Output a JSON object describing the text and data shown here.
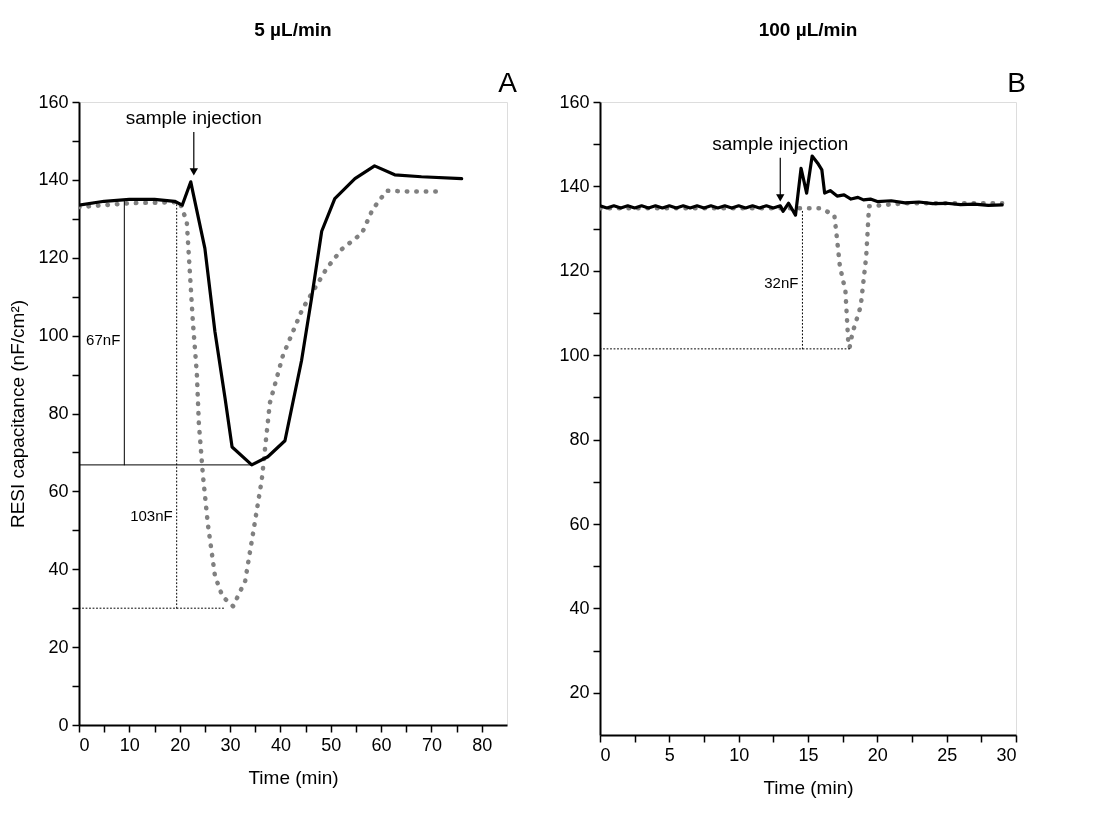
{
  "chart_data": [
    {
      "type": "line",
      "title": "5 µL/min",
      "xlabel": "Time (min)",
      "ylabel": "RESI capacitance (nF/cm²)",
      "xlim": [
        0,
        85
      ],
      "ylim": [
        0,
        160
      ],
      "xticks": [
        0,
        {
          "value": 5,
          "label": null
        },
        10,
        {
          "value": 15,
          "label": null
        },
        20,
        {
          "value": 25,
          "label": null
        },
        30,
        {
          "value": 35,
          "label": null
        },
        40,
        {
          "value": 45,
          "label": null
        },
        50,
        {
          "value": 55,
          "label": null
        },
        60,
        {
          "value": 65,
          "label": null
        },
        70,
        {
          "value": 75,
          "label": null
        },
        80
      ],
      "yticks": [
        0,
        {
          "value": 10,
          "label": null
        },
        20,
        {
          "value": 30,
          "label": null
        },
        40,
        {
          "value": 50,
          "label": null
        },
        60,
        {
          "value": 70,
          "label": null
        },
        80,
        {
          "value": 90,
          "label": null
        },
        100,
        {
          "value": 110,
          "label": null
        },
        120,
        {
          "value": 130,
          "label": null
        },
        140,
        {
          "value": 150,
          "label": null
        },
        160
      ],
      "grid": false,
      "marker": "none",
      "series": [
        {
          "color": "#808080",
          "line_style": "dotted",
          "x": [
            0,
            10,
            20,
            21.4,
            22,
            22.6,
            23.4,
            23.8,
            24.6,
            25.6,
            27,
            28.5,
            30.6,
            33,
            34.7,
            36.3,
            37.9,
            40.5,
            44.4,
            49.2,
            52.2,
            56.2,
            58.3,
            61.1,
            66,
            72
          ],
          "values": [
            133,
            134,
            134.3,
            129.3,
            116.6,
            103.8,
            90.3,
            77.5,
            64.3,
            51.5,
            38.3,
            33,
            30.5,
            37,
            50.3,
            63,
            82.7,
            94.9,
            106.9,
            117.3,
            122.2,
            126.3,
            132.4,
            137.2,
            137,
            137
          ]
        },
        {
          "color": "#000000",
          "line_style": "solid",
          "x": [
            0,
            5,
            10,
            15,
            19,
            20.5,
            22.2,
            22.6,
            25,
            27,
            29,
            30.4,
            34.3,
            37.5,
            40.9,
            44.2,
            46.2,
            48.2,
            50.8,
            54.8,
            58.7,
            62.7,
            68,
            76
          ],
          "values": [
            133.5,
            134.5,
            135,
            135,
            134.5,
            133.5,
            139.5,
            137,
            122.4,
            101,
            84,
            71.4,
            66.8,
            68.9,
            73,
            93.6,
            109.7,
            126.8,
            135.2,
            140.3,
            143.6,
            141.3,
            140.8,
            140.3
          ]
        },
        {
          "type": "line",
          "color": "#000000",
          "line_style": "solid",
          "x": [
            9,
            9
          ],
          "values": [
            66.8,
            134.5
          ]
        },
        {
          "type": "line",
          "color": "#000000",
          "line_style": "solid",
          "x": [
            0,
            34.3
          ],
          "values": [
            66.8,
            66.8
          ]
        },
        {
          "type": "line",
          "color": "#000000",
          "line_style": "dotted",
          "x": [
            19.4,
            19.4
          ],
          "values": [
            30,
            134
          ]
        },
        {
          "type": "line",
          "color": "#000000",
          "line_style": "dotted",
          "x": [
            0,
            29
          ],
          "values": [
            30,
            30
          ]
        }
      ],
      "annotations": [
        "A",
        {
          "text": "sample injection",
          "x": 22.8,
          "y": 140
        },
        {
          "text": "67nF",
          "x": 9,
          "y": 99
        },
        {
          "text": "103nF",
          "x": 19.4,
          "y": 53.6
        }
      ]
    },
    {
      "type": "line",
      "title": "100 µL/min",
      "xlabel": "Time (min)",
      "xlim": [
        0,
        30
      ],
      "ylim": [
        10,
        160
      ],
      "xticks": [
        0,
        {
          "value": 2.5,
          "label": null
        },
        5,
        {
          "value": 7.5,
          "label": null
        },
        10,
        {
          "value": 12.5,
          "label": null
        },
        15,
        {
          "value": 17.5,
          "label": null
        },
        20,
        {
          "value": 22.5,
          "label": null
        },
        25,
        {
          "value": 27.5,
          "label": null
        },
        30
      ],
      "yticks": [
        20,
        {
          "value": 30,
          "label": null
        },
        40,
        {
          "value": 50,
          "label": null
        },
        60,
        {
          "value": 70,
          "label": null
        },
        80,
        {
          "value": 90,
          "label": null
        },
        100,
        {
          "value": 110,
          "label": null
        },
        120,
        {
          "value": 130,
          "label": null
        },
        140,
        {
          "value": 150,
          "label": null
        },
        160
      ],
      "grid": false,
      "marker": "none",
      "series": [
        {
          "color": "#808080",
          "line_style": "dotted",
          "x": [
            0,
            5,
            10,
            15,
            15.9,
            16.9,
            17.1,
            17.3,
            17.7,
            17.8,
            17.9,
            18,
            18.2,
            18.8,
            19,
            19.2,
            19.3,
            19.4,
            22,
            29
          ],
          "values": [
            134.8,
            134.8,
            134.8,
            134.8,
            134.8,
            133.2,
            127.3,
            121.1,
            115.2,
            109.2,
            103.3,
            101.8,
            105.2,
            111.6,
            117.5,
            123.5,
            129.4,
            135.3,
            136,
            136
          ]
        },
        {
          "color": "#000000",
          "line_style": "solid",
          "x": [
            0,
            0.5,
            1,
            1.5,
            2,
            2.5,
            3,
            3.5,
            4,
            4.5,
            5,
            5.5,
            6,
            6.5,
            7,
            7.5,
            8,
            8.5,
            9,
            9.5,
            10,
            10.5,
            11,
            11.5,
            12,
            12.5,
            13,
            13.2,
            13.6,
            14.1,
            14.5,
            14.9,
            15.3,
            15.7,
            16,
            16.2,
            16.6,
            17.1,
            17.6,
            18.1,
            18.6,
            19,
            19.5,
            20,
            21,
            22,
            23,
            24,
            25,
            26,
            27,
            28,
            29
          ],
          "values": [
            135.4,
            134.9,
            135.4,
            134.9,
            135.4,
            134.9,
            135.4,
            134.9,
            135.4,
            134.9,
            135.4,
            134.9,
            135.4,
            134.9,
            135.4,
            134.9,
            135.4,
            134.9,
            135.4,
            134.9,
            135.4,
            134.9,
            135.4,
            134.9,
            135.4,
            134.9,
            135.4,
            134.1,
            136,
            133.2,
            144.3,
            138.4,
            147.2,
            145.5,
            143.9,
            138.4,
            139,
            137.7,
            138,
            137,
            137.4,
            136.8,
            137,
            136.4,
            136.6,
            136.1,
            136.3,
            135.9,
            136,
            135.7,
            135.8,
            135.5,
            135.6
          ]
        },
        {
          "type": "line",
          "color": "#000000",
          "line_style": "dotted",
          "x": [
            14.6,
            14.6
          ],
          "values": [
            101.5,
            134.5
          ]
        },
        {
          "type": "line",
          "color": "#000000",
          "line_style": "dotted",
          "x": [
            0,
            18
          ],
          "values": [
            101.5,
            101.5
          ]
        }
      ],
      "annotations": [
        "B",
        {
          "text": "sample injection",
          "x": 13,
          "y": 135.4
        },
        {
          "text": "32nF",
          "x": 14.6,
          "y": 117
        }
      ]
    }
  ]
}
